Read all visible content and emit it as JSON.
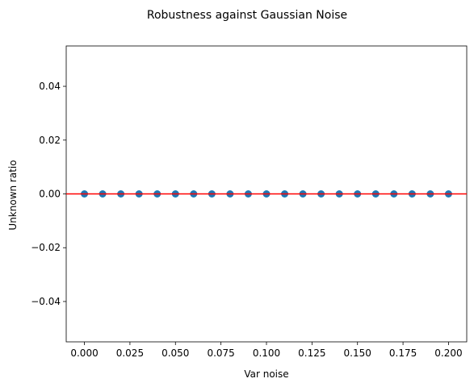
{
  "chart_data": {
    "type": "scatter",
    "title": "Robustness against Gaussian Noise",
    "xlabel": "Var noise",
    "ylabel": "Unknown ratio",
    "xlim": [
      -0.01,
      0.21
    ],
    "ylim": [
      -0.055,
      0.055
    ],
    "x_ticks": [
      0.0,
      0.025,
      0.05,
      0.075,
      0.1,
      0.125,
      0.15,
      0.175,
      0.2
    ],
    "x_tick_labels": [
      "0.000",
      "0.025",
      "0.050",
      "0.075",
      "0.100",
      "0.125",
      "0.150",
      "0.175",
      "0.200"
    ],
    "y_ticks": [
      -0.04,
      -0.02,
      0.0,
      0.02,
      0.04
    ],
    "y_tick_labels": [
      "−0.04",
      "−0.02",
      "0.00",
      "0.02",
      "0.04"
    ],
    "grid": false,
    "legend": "none",
    "series": [
      {
        "color": "#1f77b4",
        "x": [
          0.0,
          0.01,
          0.02,
          0.03,
          0.04,
          0.05,
          0.06,
          0.07,
          0.08,
          0.09,
          0.1,
          0.11,
          0.12,
          0.13,
          0.14,
          0.15,
          0.16,
          0.17,
          0.18,
          0.19,
          0.2
        ],
        "y": [
          0,
          0,
          0,
          0,
          0,
          0,
          0,
          0,
          0,
          0,
          0,
          0,
          0,
          0,
          0,
          0,
          0,
          0,
          0,
          0,
          0
        ]
      }
    ],
    "reference_line": {
      "type": "horizontal",
      "y": 0.0,
      "color": "#ff0000"
    }
  }
}
